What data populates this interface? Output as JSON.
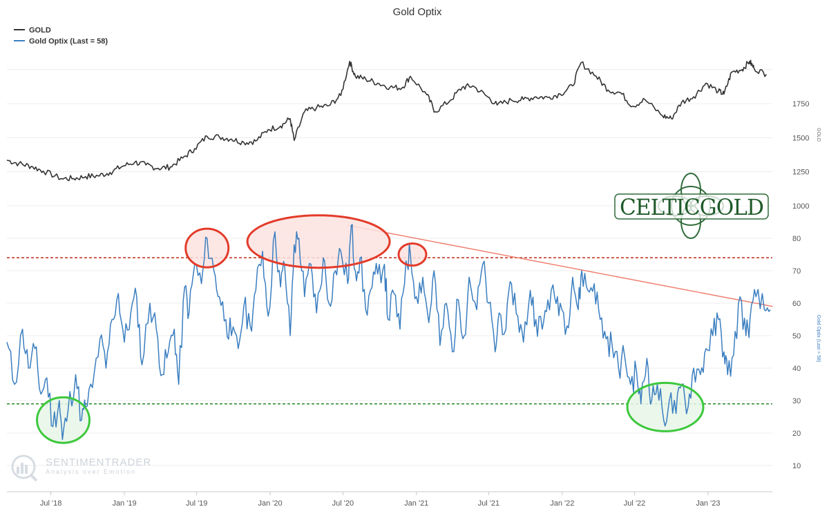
{
  "chart_data": {
    "type": "line",
    "title": "Gold Optix",
    "legend": [
      {
        "name": "GOLD",
        "color": "#333333"
      },
      {
        "name": "Gold Optix (Last = 58)",
        "color": "#3a7ec0"
      }
    ],
    "legend_position": "top-left",
    "x_tick_labels": [
      "Jul '18",
      "Jan '19",
      "Jul '19",
      "Jan '20",
      "Jul '20",
      "Jan '21",
      "Jul '21",
      "Jan '22",
      "Jul '22",
      "Jan '23"
    ],
    "x_range": [
      "2018-04-01",
      "2023-06-30"
    ],
    "gold_axis": {
      "label": "GOLD",
      "ticks": [
        1000,
        1250,
        1500,
        1750
      ],
      "range": [
        1000,
        2150
      ]
    },
    "optix_axis": {
      "label": "Gold Optix (Last = 58)",
      "ticks": [
        10,
        20,
        30,
        40,
        50,
        60,
        70,
        80
      ],
      "range": [
        5,
        85
      ]
    },
    "reference_lines": [
      {
        "value": 74,
        "color": "#c0392b",
        "style": "dashed"
      },
      {
        "value": 29,
        "color": "#2e8b2e",
        "style": "dashed"
      }
    ],
    "gold_series": {
      "name": "GOLD",
      "color": "#333333",
      "x": [
        "2018-04-01",
        "2018-05-01",
        "2018-06-01",
        "2018-07-01",
        "2018-08-15",
        "2018-09-15",
        "2018-10-15",
        "2018-11-15",
        "2018-12-15",
        "2019-01-15",
        "2019-02-15",
        "2019-03-15",
        "2019-04-15",
        "2019-05-15",
        "2019-06-15",
        "2019-07-15",
        "2019-08-15",
        "2019-09-15",
        "2019-10-15",
        "2019-11-15",
        "2019-12-15",
        "2020-01-15",
        "2020-02-15",
        "2020-03-10",
        "2020-03-20",
        "2020-04-15",
        "2020-05-15",
        "2020-06-15",
        "2020-07-15",
        "2020-08-06",
        "2020-08-20",
        "2020-09-15",
        "2020-10-15",
        "2020-11-15",
        "2020-12-15",
        "2021-01-05",
        "2021-02-15",
        "2021-03-08",
        "2021-04-15",
        "2021-05-15",
        "2021-06-10",
        "2021-07-15",
        "2021-08-10",
        "2021-09-15",
        "2021-10-15",
        "2021-11-15",
        "2021-12-15",
        "2022-01-15",
        "2022-02-15",
        "2022-03-08",
        "2022-04-15",
        "2022-05-15",
        "2022-06-15",
        "2022-07-15",
        "2022-08-15",
        "2022-09-28",
        "2022-10-20",
        "2022-11-15",
        "2022-12-15",
        "2023-01-15",
        "2023-02-15",
        "2023-03-01",
        "2023-03-20",
        "2023-04-15",
        "2023-05-04",
        "2023-05-15",
        "2023-06-15"
      ],
      "values": [
        1335,
        1310,
        1290,
        1255,
        1200,
        1200,
        1215,
        1220,
        1245,
        1290,
        1320,
        1300,
        1275,
        1285,
        1350,
        1420,
        1510,
        1505,
        1490,
        1465,
        1475,
        1560,
        1585,
        1640,
        1480,
        1690,
        1720,
        1735,
        1810,
        2060,
        1950,
        1930,
        1900,
        1870,
        1865,
        1950,
        1815,
        1690,
        1775,
        1870,
        1880,
        1805,
        1740,
        1775,
        1780,
        1800,
        1795,
        1820,
        1880,
        2050,
        1950,
        1850,
        1830,
        1730,
        1780,
        1660,
        1640,
        1760,
        1800,
        1900,
        1840,
        1820,
        1980,
        2000,
        2060,
        2010,
        1965
      ]
    },
    "optix_series": {
      "name": "Gold Optix (Last = 58)",
      "color": "#3a7ec0",
      "x": [
        "2018-04-01",
        "2018-04-20",
        "2018-05-10",
        "2018-05-25",
        "2018-06-10",
        "2018-06-25",
        "2018-07-10",
        "2018-07-25",
        "2018-08-10",
        "2018-08-18",
        "2018-09-01",
        "2018-09-20",
        "2018-10-05",
        "2018-10-15",
        "2018-11-01",
        "2018-11-20",
        "2018-12-05",
        "2018-12-20",
        "2019-01-05",
        "2019-01-20",
        "2019-02-05",
        "2019-02-20",
        "2019-03-05",
        "2019-03-25",
        "2019-04-10",
        "2019-04-25",
        "2019-05-10",
        "2019-05-25",
        "2019-06-05",
        "2019-06-20",
        "2019-07-01",
        "2019-07-15",
        "2019-08-01",
        "2019-08-15",
        "2019-09-01",
        "2019-09-15",
        "2019-10-01",
        "2019-10-15",
        "2019-11-01",
        "2019-11-15",
        "2019-12-01",
        "2019-12-15",
        "2020-01-01",
        "2020-01-15",
        "2020-02-01",
        "2020-02-15",
        "2020-02-25",
        "2020-03-10",
        "2020-03-20",
        "2020-04-01",
        "2020-04-15",
        "2020-05-01",
        "2020-05-15",
        "2020-06-01",
        "2020-06-15",
        "2020-07-01",
        "2020-07-15",
        "2020-08-01",
        "2020-08-10",
        "2020-08-20",
        "2020-09-01",
        "2020-09-15",
        "2020-10-01",
        "2020-10-15",
        "2020-11-01",
        "2020-11-10",
        "2020-11-25",
        "2020-12-10",
        "2020-12-25",
        "2021-01-05",
        "2021-01-20",
        "2021-02-05",
        "2021-02-20",
        "2021-03-05",
        "2021-03-20",
        "2021-04-05",
        "2021-04-20",
        "2021-05-05",
        "2021-05-20",
        "2021-06-01",
        "2021-06-20",
        "2021-07-05",
        "2021-07-20",
        "2021-08-05",
        "2021-08-15",
        "2021-09-01",
        "2021-09-15",
        "2021-10-01",
        "2021-10-15",
        "2021-11-01",
        "2021-11-15",
        "2021-12-01",
        "2021-12-15",
        "2022-01-01",
        "2022-01-15",
        "2022-02-01",
        "2022-02-15",
        "2022-03-01",
        "2022-03-10",
        "2022-03-25",
        "2022-04-10",
        "2022-04-25",
        "2022-05-10",
        "2022-05-25",
        "2022-06-10",
        "2022-06-25",
        "2022-07-10",
        "2022-07-25",
        "2022-08-05",
        "2022-08-20",
        "2022-09-01",
        "2022-09-15",
        "2022-10-01",
        "2022-10-15",
        "2022-11-01",
        "2022-11-15",
        "2022-12-01",
        "2022-12-15",
        "2023-01-01",
        "2023-01-15",
        "2023-02-01",
        "2023-02-15",
        "2023-03-01",
        "2023-03-10",
        "2023-03-25",
        "2023-04-10",
        "2023-04-25",
        "2023-05-05",
        "2023-05-20",
        "2023-06-10",
        "2023-06-25"
      ],
      "values": [
        48,
        35,
        52,
        40,
        46,
        32,
        37,
        22,
        30,
        18,
        27,
        38,
        24,
        28,
        34,
        49,
        40,
        55,
        63,
        48,
        57,
        62,
        41,
        60,
        52,
        38,
        45,
        52,
        35,
        65,
        57,
        72,
        66,
        80,
        70,
        62,
        55,
        50,
        46,
        59,
        53,
        64,
        76,
        56,
        82,
        65,
        72,
        50,
        78,
        80,
        62,
        72,
        57,
        74,
        60,
        70,
        76,
        66,
        84,
        70,
        74,
        58,
        65,
        69,
        72,
        55,
        63,
        52,
        73,
        75,
        62,
        68,
        54,
        70,
        47,
        60,
        45,
        61,
        50,
        68,
        58,
        72,
        60,
        45,
        57,
        52,
        66,
        56,
        48,
        64,
        55,
        52,
        61,
        62,
        60,
        53,
        68,
        58,
        70,
        64,
        66,
        55,
        49,
        47,
        40,
        44,
        35,
        39,
        29,
        43,
        30,
        35,
        24,
        30,
        26,
        35,
        28,
        40,
        38,
        46,
        50,
        55,
        45,
        38,
        44,
        62,
        50,
        55,
        62,
        58,
        58
      ]
    },
    "trend_line": {
      "x": [
        "2020-08-01",
        "2023-07-01"
      ],
      "values": [
        84,
        59
      ],
      "color": "#f07a6a"
    },
    "highlight_ellipses": [
      {
        "type": "overbought",
        "x_center": "2019-08-15",
        "y_center": 77,
        "color": "#e33b2a"
      },
      {
        "type": "overbought",
        "x_center": "2020-05-20",
        "y_center": 79,
        "color": "#e33b2a"
      },
      {
        "type": "overbought",
        "x_center": "2021-01-10",
        "y_center": 75,
        "color": "#e33b2a"
      },
      {
        "type": "oversold",
        "x_center": "2018-08-20",
        "y_center": 24,
        "color": "#3cc83c"
      },
      {
        "type": "oversold",
        "x_center": "2022-10-05",
        "y_center": 28,
        "color": "#3cc83c"
      }
    ],
    "watermark": {
      "brand": "SENTIMENTRADER",
      "tagline": "Analysis over Emotion"
    },
    "logo_text": "CELTICGOLD"
  }
}
